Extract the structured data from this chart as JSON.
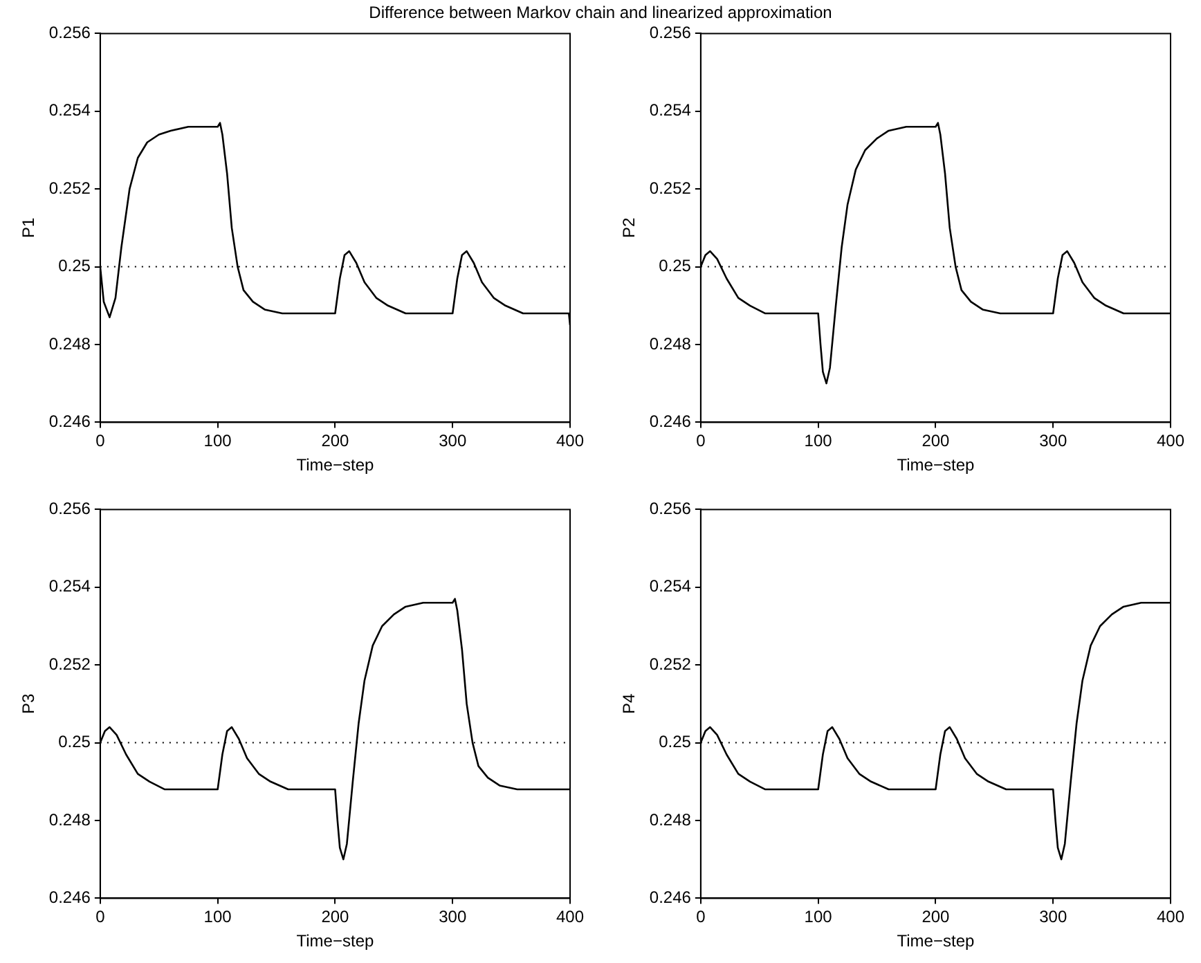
{
  "chart_data": [
    {
      "type": "line",
      "title": "Difference between Markov chain and linearized approximation",
      "xlabel": "Time−step",
      "ylabel": "P1",
      "xlim": [
        0,
        400
      ],
      "xticks": [
        0,
        100,
        200,
        300,
        400
      ],
      "ylim": [
        0.246,
        0.256
      ],
      "yticks": [
        0.246,
        0.248,
        0.25,
        0.252,
        0.254,
        0.256
      ],
      "grid": false,
      "legend": false,
      "marker": "none",
      "ref_lines": [
        {
          "axis": "y",
          "value": 0.25,
          "color": "#000000",
          "line_style": "dotted"
        }
      ],
      "series": [
        {
          "color": "#000000",
          "x": [
            0,
            3,
            8,
            13,
            18,
            25,
            32,
            40,
            50,
            60,
            75,
            100,
            102,
            104,
            108,
            112,
            117,
            122,
            130,
            140,
            155,
            200,
            204,
            208,
            212,
            218,
            225,
            235,
            245,
            260,
            300,
            304,
            308,
            312,
            318,
            325,
            335,
            345,
            360,
            399,
            400
          ],
          "values": [
            0.25,
            0.2491,
            0.2487,
            0.2492,
            0.2505,
            0.252,
            0.2528,
            0.2532,
            0.2534,
            0.2535,
            0.2536,
            0.2536,
            0.2537,
            0.2534,
            0.2524,
            0.251,
            0.25,
            0.2494,
            0.2491,
            0.2489,
            0.2488,
            0.2488,
            0.2497,
            0.2503,
            0.2504,
            0.2501,
            0.2496,
            0.2492,
            0.249,
            0.2488,
            0.2488,
            0.2497,
            0.2503,
            0.2504,
            0.2501,
            0.2496,
            0.2492,
            0.249,
            0.2488,
            0.2488,
            0.2485
          ]
        }
      ]
    },
    {
      "type": "line",
      "xlabel": "Time−step",
      "ylabel": "P2",
      "xlim": [
        0,
        400
      ],
      "xticks": [
        0,
        100,
        200,
        300,
        400
      ],
      "ylim": [
        0.246,
        0.256
      ],
      "yticks": [
        0.246,
        0.248,
        0.25,
        0.252,
        0.254,
        0.256
      ],
      "grid": false,
      "legend": false,
      "marker": "none",
      "ref_lines": [
        {
          "axis": "y",
          "value": 0.25,
          "color": "#000000",
          "line_style": "dotted"
        }
      ],
      "series": [
        {
          "color": "#000000",
          "x": [
            0,
            4,
            8,
            14,
            22,
            32,
            42,
            55,
            100,
            102,
            104,
            107,
            110,
            115,
            120,
            125,
            132,
            140,
            150,
            160,
            175,
            200,
            202,
            204,
            208,
            212,
            217,
            222,
            230,
            240,
            255,
            300,
            304,
            308,
            312,
            318,
            325,
            335,
            345,
            360,
            400
          ],
          "values": [
            0.25,
            0.2503,
            0.2504,
            0.2502,
            0.2497,
            0.2492,
            0.249,
            0.2488,
            0.2488,
            0.248,
            0.2473,
            0.247,
            0.2474,
            0.249,
            0.2505,
            0.2516,
            0.2525,
            0.253,
            0.2533,
            0.2535,
            0.2536,
            0.2536,
            0.2537,
            0.2534,
            0.2524,
            0.251,
            0.25,
            0.2494,
            0.2491,
            0.2489,
            0.2488,
            0.2488,
            0.2497,
            0.2503,
            0.2504,
            0.2501,
            0.2496,
            0.2492,
            0.249,
            0.2488,
            0.2488
          ]
        }
      ]
    },
    {
      "type": "line",
      "xlabel": "Time−step",
      "ylabel": "P3",
      "xlim": [
        0,
        400
      ],
      "xticks": [
        0,
        100,
        200,
        300,
        400
      ],
      "ylim": [
        0.246,
        0.256
      ],
      "yticks": [
        0.246,
        0.248,
        0.25,
        0.252,
        0.254,
        0.256
      ],
      "grid": false,
      "legend": false,
      "marker": "none",
      "ref_lines": [
        {
          "axis": "y",
          "value": 0.25,
          "color": "#000000",
          "line_style": "dotted"
        }
      ],
      "series": [
        {
          "color": "#000000",
          "x": [
            0,
            4,
            8,
            14,
            22,
            32,
            42,
            55,
            100,
            104,
            108,
            112,
            118,
            125,
            135,
            145,
            160,
            200,
            202,
            204,
            207,
            210,
            215,
            220,
            225,
            232,
            240,
            250,
            260,
            275,
            300,
            302,
            304,
            308,
            312,
            317,
            322,
            330,
            340,
            355,
            400
          ],
          "values": [
            0.25,
            0.2503,
            0.2504,
            0.2502,
            0.2497,
            0.2492,
            0.249,
            0.2488,
            0.2488,
            0.2497,
            0.2503,
            0.2504,
            0.2501,
            0.2496,
            0.2492,
            0.249,
            0.2488,
            0.2488,
            0.248,
            0.2473,
            0.247,
            0.2474,
            0.249,
            0.2505,
            0.2516,
            0.2525,
            0.253,
            0.2533,
            0.2535,
            0.2536,
            0.2536,
            0.2537,
            0.2534,
            0.2524,
            0.251,
            0.25,
            0.2494,
            0.2491,
            0.2489,
            0.2488,
            0.2488
          ]
        }
      ]
    },
    {
      "type": "line",
      "xlabel": "Time−step",
      "ylabel": "P4",
      "xlim": [
        0,
        400
      ],
      "xticks": [
        0,
        100,
        200,
        300,
        400
      ],
      "ylim": [
        0.246,
        0.256
      ],
      "yticks": [
        0.246,
        0.248,
        0.25,
        0.252,
        0.254,
        0.256
      ],
      "grid": false,
      "legend": false,
      "marker": "none",
      "ref_lines": [
        {
          "axis": "y",
          "value": 0.25,
          "color": "#000000",
          "line_style": "dotted"
        }
      ],
      "series": [
        {
          "color": "#000000",
          "x": [
            0,
            4,
            8,
            14,
            22,
            32,
            42,
            55,
            100,
            104,
            108,
            112,
            118,
            125,
            135,
            145,
            160,
            200,
            204,
            208,
            212,
            218,
            225,
            235,
            245,
            260,
            300,
            302,
            304,
            307,
            310,
            315,
            320,
            325,
            332,
            340,
            350,
            360,
            375,
            400
          ],
          "values": [
            0.25,
            0.2503,
            0.2504,
            0.2502,
            0.2497,
            0.2492,
            0.249,
            0.2488,
            0.2488,
            0.2497,
            0.2503,
            0.2504,
            0.2501,
            0.2496,
            0.2492,
            0.249,
            0.2488,
            0.2488,
            0.2497,
            0.2503,
            0.2504,
            0.2501,
            0.2496,
            0.2492,
            0.249,
            0.2488,
            0.2488,
            0.248,
            0.2473,
            0.247,
            0.2474,
            0.249,
            0.2505,
            0.2516,
            0.2525,
            0.253,
            0.2533,
            0.2535,
            0.2536,
            0.2536
          ]
        }
      ]
    }
  ]
}
